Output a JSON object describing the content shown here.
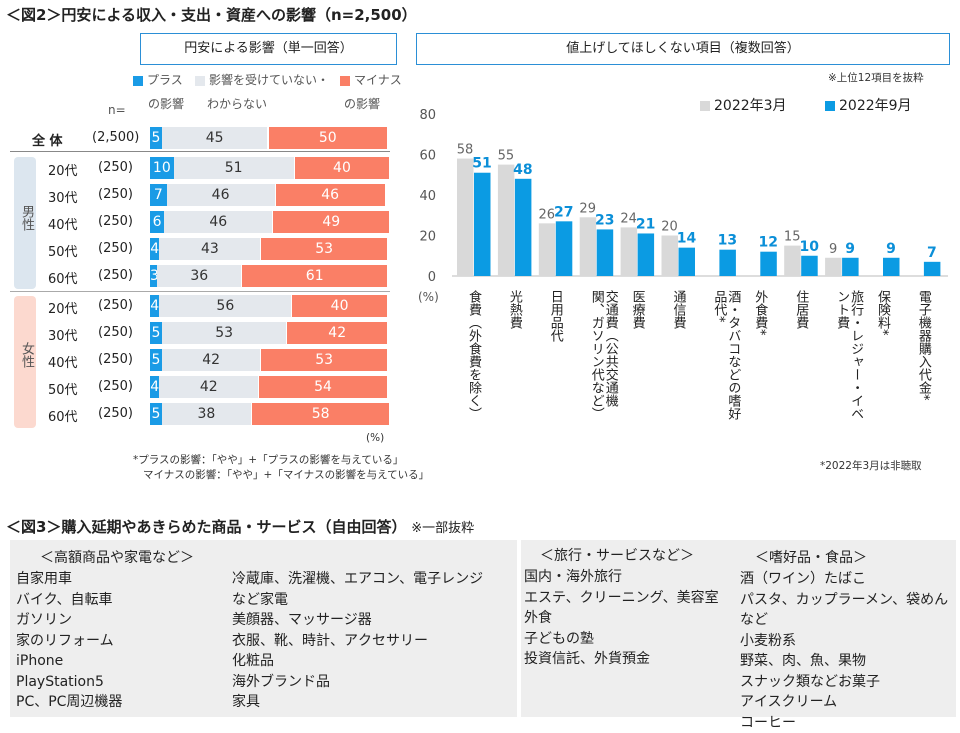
{
  "title": "＜図2＞円安による収入・支出・資産への影響（n=2,500）",
  "left": {
    "header": "円安による影響（単一回答）",
    "legend": [
      {
        "l1": "プラス",
        "l2": "の影響",
        "color": "#1a9be6"
      },
      {
        "l1": "影響を受けていない・",
        "l2": "わからない",
        "color": "#e4e8ed"
      },
      {
        "l1": "マイナス",
        "l2": "の影響",
        "color": "#fa7f66"
      }
    ],
    "n_label": "n=",
    "group_male": "男性",
    "group_female": "女性",
    "pct_label": "(%)",
    "note1": "*プラスの影響：「やや」+「プラスの影響を与えている」",
    "note2": "マイナスの影響：「やや」+「マイナスの影響を与えている」"
  },
  "right": {
    "header": "値上げしてほしくない項目（複数回答）",
    "subnote": "※上位12項目を抜粋",
    "pct_label": "(%)",
    "footnote": "*2022年3月は非聴取"
  },
  "chart_data": [
    {
      "type": "bar",
      "stacked": true,
      "orientation": "horizontal",
      "categories": [
        "全 体",
        "20代",
        "30代",
        "40代",
        "50代",
        "60代",
        "20代",
        "30代",
        "40代",
        "50代",
        "60代"
      ],
      "n": [
        "(2,500)",
        "(250)",
        "(250)",
        "(250)",
        "(250)",
        "(250)",
        "(250)",
        "(250)",
        "(250)",
        "(250)",
        "(250)"
      ],
      "series": [
        {
          "name": "プラスの影響",
          "color": "#1a9be6",
          "values": [
            5,
            10,
            7,
            6,
            4,
            3,
            4,
            5,
            5,
            4,
            5
          ]
        },
        {
          "name": "影響を受けていない・わからない",
          "color": "#e4e8ed",
          "values": [
            45,
            51,
            46,
            46,
            43,
            36,
            56,
            53,
            42,
            42,
            38
          ]
        },
        {
          "name": "マイナスの影響",
          "color": "#fa7f66",
          "values": [
            50,
            40,
            46,
            49,
            53,
            61,
            40,
            42,
            53,
            54,
            58
          ]
        }
      ],
      "xlim": [
        0,
        100
      ]
    },
    {
      "type": "bar",
      "ylim": [
        0,
        80
      ],
      "yticks": [
        0,
        20,
        40,
        60,
        80
      ],
      "legend": "top-right",
      "categories": [
        "食費（外食費を除く）",
        "光熱費",
        "日用品代",
        "交通費（公共交通機関、ガソリン代など）",
        "医療費",
        "通信費",
        "酒・タバコなどの嗜好品代*",
        "外食費*",
        "住居費",
        "旅行・レジャー・イベント費",
        "保険料*",
        "電子機器購入代金*"
      ],
      "series": [
        {
          "name": "2022年3月",
          "color": "#d9d9d9",
          "values": [
            58,
            55,
            26,
            29,
            24,
            20,
            null,
            null,
            15,
            9,
            null,
            null
          ]
        },
        {
          "name": "2022年9月",
          "color": "#0b9be3",
          "values": [
            51,
            48,
            27,
            23,
            21,
            14,
            13,
            12,
            10,
            9,
            9,
            7
          ]
        }
      ]
    }
  ],
  "fig3": {
    "title": "＜図3＞購入延期やあきらめた商品・サービス（自由回答）",
    "note": "※一部抜粋",
    "col1_header": "＜高額商品や家電など＞",
    "col1": [
      "自家用車",
      "バイク、自転車",
      "ガソリン",
      "家のリフォーム",
      "iPhone",
      "PlayStation5",
      "PC、PC周辺機器"
    ],
    "col2": [
      "冷蔵庫、洗濯機、エアコン、電子レンジ",
      "など家電",
      "美顔器、マッサージ器",
      "衣服、靴、時計、アクセサリー",
      "化粧品",
      "海外ブランド品",
      "家具"
    ],
    "col3_header": "＜旅行・サービスなど＞",
    "col3": [
      "国内・海外旅行",
      "エステ、クリーニング、美容室",
      "外食",
      "子どもの塾",
      "投資信託、外貨預金"
    ],
    "col4_header": "＜嗜好品・食品＞",
    "col4": [
      "酒（ワイン）たばこ",
      "パスタ、カップラーメン、袋めんなど",
      "小麦粉系",
      "野菜、肉、魚、果物",
      "スナック類などお菓子",
      "アイスクリーム",
      "コーヒー"
    ]
  }
}
